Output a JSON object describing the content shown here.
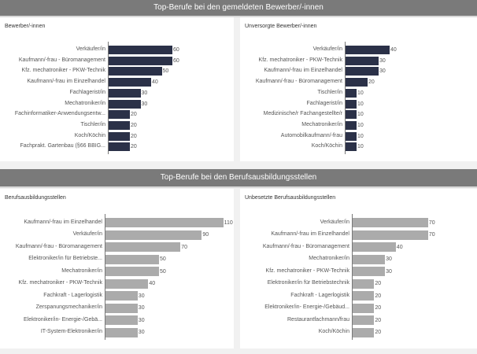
{
  "sections": [
    {
      "title": "Top-Berufe bei den gemeldeten Bewerber/-innen"
    },
    {
      "title": "Top-Berufe bei den Berufsausbildungsstellen"
    }
  ],
  "colors": {
    "header_bg": "#7a7a7a",
    "bar_dark": "#2b3148",
    "bar_light": "#ababab"
  },
  "chart_data": [
    {
      "type": "bar",
      "orientation": "horizontal",
      "title": "Bewerber/-innen",
      "categories": [
        "Verkäufer/in",
        "Kaufmann/-frau - Büromanagement",
        "Kfz. mechatroniker - PKW-Technik",
        "Kaufmann/-frau im Einzelhandel",
        "Fachlagerist/in",
        "Mechatroniker/in",
        "Fachinformatiker-Anwendungsentw...",
        "Tischler/in",
        "Koch/Köchin",
        "Fachprakt. Gartenbau (§66 BBIG..."
      ],
      "values": [
        60,
        60,
        50,
        40,
        30,
        30,
        20,
        20,
        20,
        20
      ],
      "color": "#2b3148",
      "data_labels": true,
      "grid": false
    },
    {
      "type": "bar",
      "orientation": "horizontal",
      "title": "Unversorgte Bewerber/-innen",
      "categories": [
        "Verkäufer/in",
        "Kfz. mechatroniker - PKW-Technik",
        "Kaufmann/-frau im Einzelhandel",
        "Kaufmann/-frau - Büromanagement",
        "Tischler/in",
        "Fachlagerist/in",
        "Medizinische/r Fachangestellte/r",
        "Mechatroniker/in",
        "Automobilkaufmann/-frau",
        "Koch/Köchin"
      ],
      "values": [
        40,
        30,
        30,
        20,
        10,
        10,
        10,
        10,
        10,
        10
      ],
      "color": "#2b3148",
      "data_labels": true,
      "grid": false
    },
    {
      "type": "bar",
      "orientation": "horizontal",
      "title": "Berufsausbildungsstellen",
      "categories": [
        "Kaufmann/-frau im Einzelhandel",
        "Verkäufer/in",
        "Kaufmann/-frau - Büromanagement",
        "Elektroniker/in für Betriebste...",
        "Mechatroniker/in",
        "Kfz. mechatroniker - PKW-Technik",
        "Fachkraft - Lagerlogistik",
        "Zerspanungsmechaniker/in",
        "Elektroniker/in- Energie-/Gebä...",
        "IT-System-Elektroniker/in"
      ],
      "values": [
        110,
        90,
        70,
        50,
        50,
        40,
        30,
        30,
        30,
        30
      ],
      "color": "#ababab",
      "data_labels": true,
      "grid": false
    },
    {
      "type": "bar",
      "orientation": "horizontal",
      "title": "Unbesetzte Berufsausbildungsstellen",
      "categories": [
        "Verkäufer/in",
        "Kaufmann/-frau im Einzelhandel",
        "Kaufmann/-frau - Büromanagement",
        "Mechatroniker/in",
        "Kfz. mechatroniker - PKW-Technik",
        "Elektroniker/in für Betriebstechnik",
        "Fachkraft - Lagerlogistik",
        "Elektroniker/in- Energie-/Gebäud...",
        "Restaurantfachmann/frau",
        "Koch/Köchin"
      ],
      "values": [
        70,
        70,
        40,
        30,
        30,
        20,
        20,
        20,
        20,
        20
      ],
      "color": "#ababab",
      "data_labels": true,
      "grid": false
    }
  ]
}
